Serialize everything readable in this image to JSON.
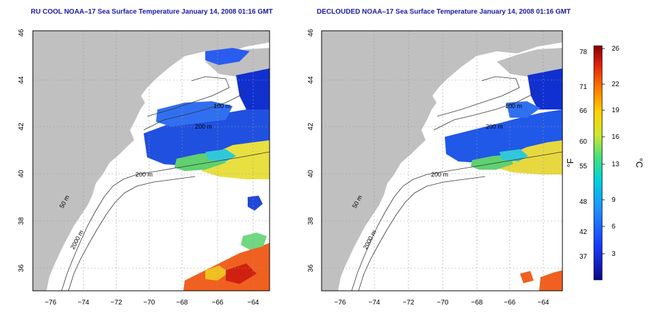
{
  "panels": [
    {
      "title": "RU COOL NOAA–17 Sea Surface Temperature January 14, 2008 01:16 GMT",
      "contour_labels": [
        "100 m",
        "200 m",
        "200 m",
        "50 m",
        "2000 m"
      ]
    },
    {
      "title": "DECLOUDED NOAA–17 Sea Surface Temperature January 14, 2008 01:16 GMT",
      "contour_labels": [
        "100 m",
        "200 m",
        "200 m",
        "50 m",
        "2000 m"
      ]
    }
  ],
  "axes": {
    "lat_ticks": [
      "46",
      "44",
      "42",
      "40",
      "38",
      "36"
    ],
    "lon_ticks": [
      "−76",
      "−74",
      "−72",
      "−70",
      "−68",
      "−66",
      "−64"
    ]
  },
  "colorbar": {
    "fahrenheit_ticks": [
      "78",
      "71",
      "66",
      "60",
      "55",
      "48",
      "42",
      "37"
    ],
    "celsius_ticks": [
      "26",
      "22",
      "19",
      "16",
      "13",
      "9",
      "6",
      "3"
    ],
    "label_f": "°F",
    "label_c": "°C"
  },
  "colors": {
    "land": "#c0c0c0",
    "title": "#1a1aa6"
  }
}
